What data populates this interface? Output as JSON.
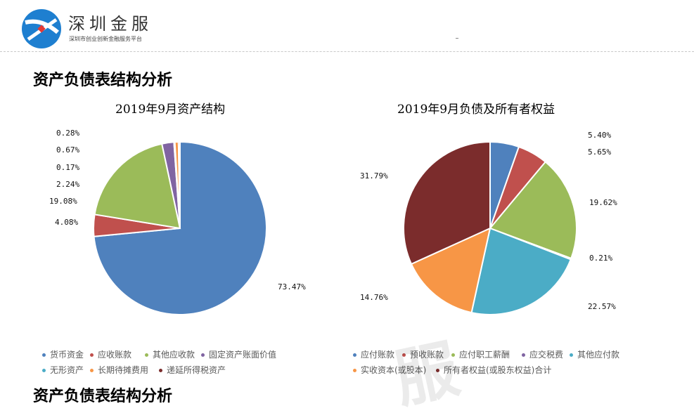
{
  "header": {
    "brand_name": "深圳金服",
    "brand_sub": "深圳市创业创新金融服务平台"
  },
  "section_title": "资产负债表结构分析",
  "bottom_title": "资产负债表结构分析",
  "watermark": "服",
  "chart_data": [
    {
      "type": "pie",
      "title": "2019年9月资产结构",
      "labels": [
        "货币资金",
        "应收账款",
        "其他应收款",
        "固定资产账面价值",
        "无形资产",
        "长期待摊费用",
        "递延所得税资产"
      ],
      "values": [
        73.47,
        4.08,
        19.08,
        2.24,
        0.17,
        0.67,
        0.28
      ],
      "display_labels": [
        "73.47%",
        "4.08%",
        "19.08%",
        "2.24%",
        "0.17%",
        "0.67%",
        "0.28%"
      ],
      "colors": [
        "#4f81bd",
        "#c0504d",
        "#9bbb59",
        "#8064a2",
        "#4bacc6",
        "#f79646",
        "#7b2c2c"
      ]
    },
    {
      "type": "pie",
      "title": "2019年9月负债及所有者权益",
      "labels": [
        "应付账款",
        "预收账款",
        "应付职工薪酬",
        "应交税费",
        "其他应付款",
        "实收资本(或股本)",
        "所有者权益(或股东权益)合计"
      ],
      "values": [
        5.4,
        5.65,
        19.62,
        0.21,
        22.57,
        14.76,
        31.79
      ],
      "display_labels": [
        "5.40%",
        "5.65%",
        "19.62%",
        "0.21%",
        "22.57%",
        "14.76%",
        "31.79%"
      ],
      "colors": [
        "#4f81bd",
        "#c0504d",
        "#9bbb59",
        "#8064a2",
        "#4bacc6",
        "#f79646",
        "#7b2c2c"
      ]
    }
  ]
}
